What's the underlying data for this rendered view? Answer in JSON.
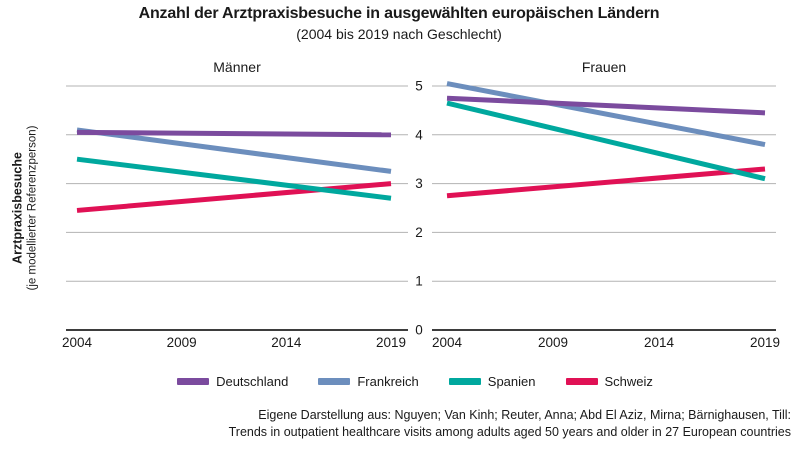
{
  "title": "Anzahl der Arztpraxisbesuche in ausgewählten europäischen Ländern",
  "subtitle": "(2004 bis 2019 nach Geschlecht)",
  "y_axis": {
    "label_main": "Arztpraxisbesuche",
    "label_sub": "(je modellierter Referenzperson)"
  },
  "chart_data": {
    "type": "line",
    "x": [
      2004,
      2019
    ],
    "x_ticks": [
      2004,
      2009,
      2014,
      2019
    ],
    "y_ticks": [
      0,
      1,
      2,
      3,
      4,
      5
    ],
    "ylim": [
      0,
      5
    ],
    "grid": true,
    "legend_position": "bottom",
    "panels": [
      {
        "title": "Männer",
        "series": [
          {
            "name": "Deutschland",
            "color": "#7B4B9E",
            "values": [
              4.05,
              4.0
            ]
          },
          {
            "name": "Frankreich",
            "color": "#6C8EBD",
            "values": [
              4.1,
              3.25
            ]
          },
          {
            "name": "Spanien",
            "color": "#00A89E",
            "values": [
              3.5,
              2.7
            ]
          },
          {
            "name": "Schweiz",
            "color": "#E01155",
            "values": [
              2.45,
              3.0
            ]
          }
        ]
      },
      {
        "title": "Frauen",
        "series": [
          {
            "name": "Deutschland",
            "color": "#7B4B9E",
            "values": [
              4.75,
              4.45
            ]
          },
          {
            "name": "Frankreich",
            "color": "#6C8EBD",
            "values": [
              5.05,
              3.8
            ]
          },
          {
            "name": "Spanien",
            "color": "#00A89E",
            "values": [
              4.65,
              3.1
            ]
          },
          {
            "name": "Schweiz",
            "color": "#E01155",
            "values": [
              2.75,
              3.3
            ]
          }
        ]
      }
    ]
  },
  "legend": [
    {
      "label": "Deutschland",
      "color": "#7B4B9E"
    },
    {
      "label": "Frankreich",
      "color": "#6C8EBD"
    },
    {
      "label": "Spanien",
      "color": "#00A89E"
    },
    {
      "label": "Schweiz",
      "color": "#E01155"
    }
  ],
  "source": {
    "line1": "Eigene Darstellung aus: Nguyen; Van Kinh; Reuter, Anna; Abd El Aziz, Mirna; Bärnighausen, Till:",
    "line2": "Trends in outpatient healthcare visits among adults aged 50 years and older in 27 European countries"
  }
}
